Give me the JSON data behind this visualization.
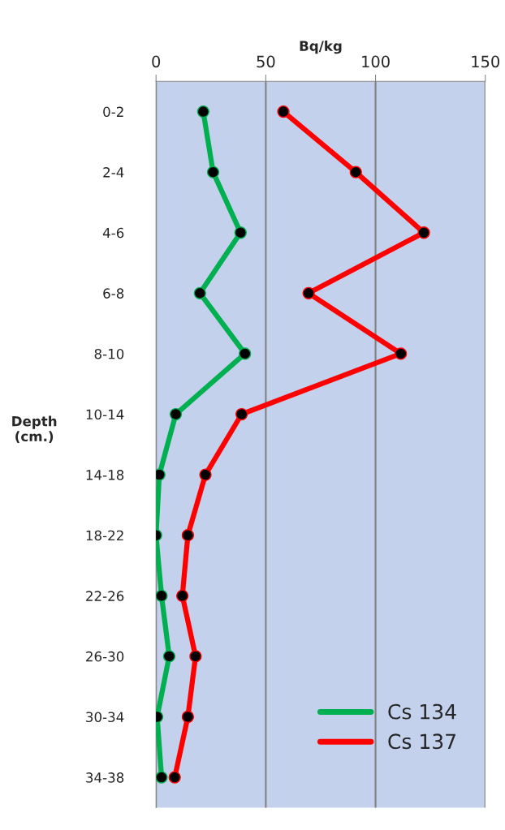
{
  "chart_data": {
    "type": "line",
    "orientation": "horizontal",
    "xlabel": "Bq/kg",
    "ylabel": "Depth\n(cm.)",
    "categories": [
      "0-2",
      "2-4",
      "4-6",
      "6-8",
      "8-10",
      "10-14",
      "14-18",
      "18-22",
      "22-26",
      "26-30",
      "30-34",
      "34-38"
    ],
    "series": [
      {
        "name": "Cs 134",
        "color": "#00b050",
        "values": [
          21.5,
          26,
          38.5,
          20,
          40.5,
          9,
          1.5,
          0,
          2.5,
          6,
          0.5,
          2.5
        ]
      },
      {
        "name": "Cs 137",
        "color": "#ff0000",
        "values": [
          58,
          91,
          122,
          69.5,
          111.5,
          39,
          22.5,
          14.5,
          12,
          18,
          14.5,
          8.5
        ]
      }
    ],
    "xlim": [
      0,
      150
    ],
    "xticks": [
      0,
      50,
      100,
      150
    ],
    "grid": "x",
    "legend": "bottom right",
    "marker": "circle",
    "line_style": "solid"
  }
}
